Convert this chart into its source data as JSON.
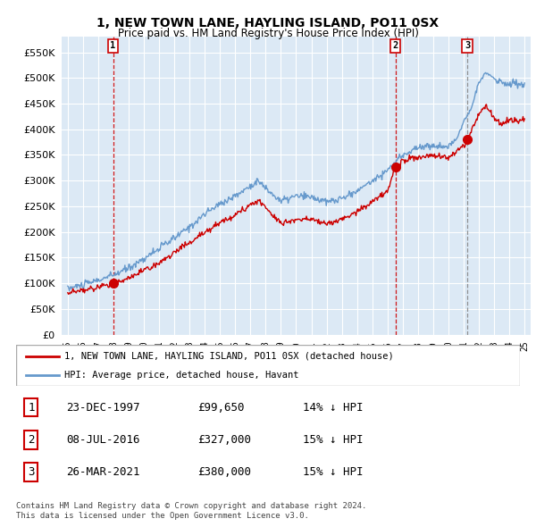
{
  "title": "1, NEW TOWN LANE, HAYLING ISLAND, PO11 0SX",
  "subtitle": "Price paid vs. HM Land Registry's House Price Index (HPI)",
  "legend_label_red": "1, NEW TOWN LANE, HAYLING ISLAND, PO11 0SX (detached house)",
  "legend_label_blue": "HPI: Average price, detached house, Havant",
  "footer1": "Contains HM Land Registry data © Crown copyright and database right 2024.",
  "footer2": "This data is licensed under the Open Government Licence v3.0.",
  "transactions": [
    {
      "num": 1,
      "date": "23-DEC-1997",
      "price": "£99,650",
      "hpi": "14% ↓ HPI",
      "dash_color": "#cc0000"
    },
    {
      "num": 2,
      "date": "08-JUL-2016",
      "price": "£327,000",
      "hpi": "15% ↓ HPI",
      "dash_color": "#cc0000"
    },
    {
      "num": 3,
      "date": "26-MAR-2021",
      "price": "£380,000",
      "hpi": "15% ↓ HPI",
      "dash_color": "#888888"
    }
  ],
  "transaction_dates": [
    1997.98,
    2016.52,
    2021.24
  ],
  "transaction_prices": [
    99650,
    327000,
    380000
  ],
  "ylim": [
    0,
    580000
  ],
  "yticks": [
    0,
    50000,
    100000,
    150000,
    200000,
    250000,
    300000,
    350000,
    400000,
    450000,
    500000,
    550000
  ],
  "color_red": "#cc0000",
  "color_blue": "#6699cc",
  "bg_chart": "#dce9f5",
  "bg_color": "#ffffff",
  "grid_color": "#ffffff"
}
